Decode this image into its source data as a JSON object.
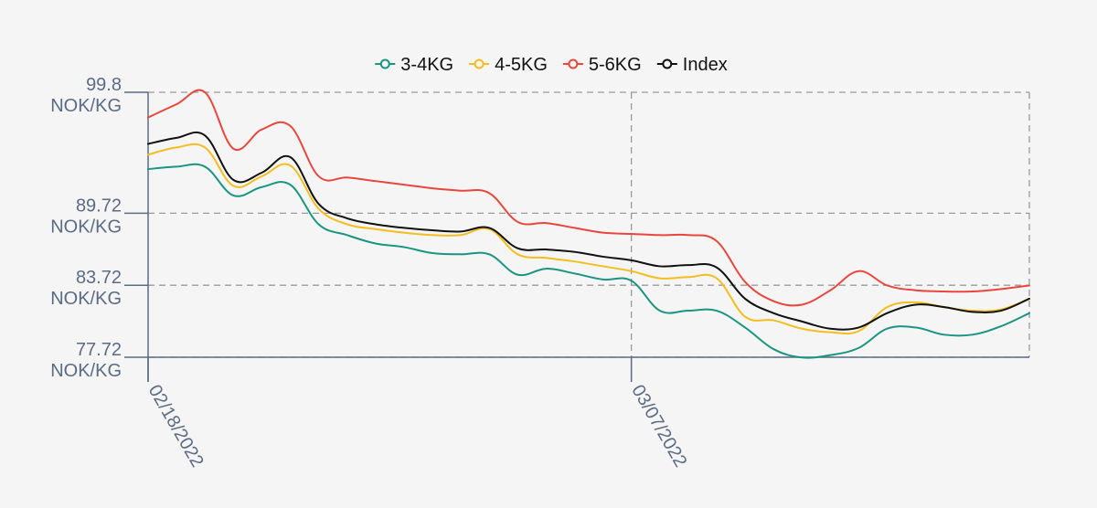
{
  "chart_data": {
    "type": "line",
    "x": [
      "2022-02-18",
      "2022-02-19",
      "2022-02-20",
      "2022-02-21",
      "2022-02-22",
      "2022-02-23",
      "2022-02-24",
      "2022-02-25",
      "2022-02-26",
      "2022-02-27",
      "2022-02-28",
      "2022-03-01",
      "2022-03-02",
      "2022-03-03",
      "2022-03-04",
      "2022-03-05",
      "2022-03-06",
      "2022-03-07",
      "2022-03-08",
      "2022-03-09",
      "2022-03-10",
      "2022-03-11",
      "2022-03-12",
      "2022-03-13",
      "2022-03-14",
      "2022-03-15",
      "2022-03-16",
      "2022-03-17",
      "2022-03-18",
      "2022-03-19",
      "2022-03-20",
      "2022-03-21"
    ],
    "series": [
      {
        "name": "3-4KG",
        "color": "#1a9580",
        "values": [
          93.4,
          93.6,
          93.6,
          91.2,
          91.9,
          92.1,
          88.8,
          87.9,
          87.2,
          86.9,
          86.4,
          86.3,
          86.3,
          84.6,
          85.1,
          84.7,
          84.2,
          84.1,
          81.6,
          81.6,
          81.6,
          80.2,
          78.4,
          77.7,
          77.9,
          78.5,
          80.1,
          80.2,
          79.6,
          79.6,
          80.3,
          81.4
        ]
      },
      {
        "name": "4-5KG",
        "color": "#f5bd1f",
        "values": [
          94.6,
          95.2,
          95.2,
          92.0,
          92.8,
          93.7,
          90.1,
          88.8,
          88.4,
          88.1,
          87.9,
          87.9,
          88.4,
          86.3,
          86.0,
          85.7,
          85.3,
          84.9,
          84.3,
          84.4,
          84.3,
          81.1,
          80.8,
          80.1,
          79.8,
          79.9,
          81.9,
          82.3,
          81.9,
          81.6,
          81.7,
          82.6
        ]
      },
      {
        "name": "5-6KG",
        "color": "#e8473d",
        "values": [
          97.7,
          98.8,
          99.8,
          95.1,
          96.7,
          97.0,
          92.8,
          92.7,
          92.4,
          92.1,
          91.8,
          91.6,
          91.4,
          89.0,
          88.9,
          88.5,
          88.1,
          88.0,
          87.9,
          87.9,
          87.4,
          84.0,
          82.4,
          82.1,
          83.3,
          84.9,
          83.7,
          83.3,
          83.2,
          83.2,
          83.4,
          83.7
        ]
      },
      {
        "name": "Index",
        "color": "#111111",
        "values": [
          95.5,
          96.0,
          96.2,
          92.5,
          93.1,
          94.4,
          90.5,
          89.3,
          88.8,
          88.5,
          88.3,
          88.2,
          88.5,
          86.8,
          86.7,
          86.5,
          86.1,
          85.8,
          85.3,
          85.4,
          85.2,
          82.6,
          81.4,
          80.7,
          80.1,
          80.2,
          81.4,
          82.1,
          81.9,
          81.5,
          81.6,
          82.6
        ]
      }
    ],
    "y_ticks": [
      {
        "value": 99.8,
        "line1": "99.8",
        "line2": "NOK/KG"
      },
      {
        "value": 89.72,
        "line1": "89.72",
        "line2": "NOK/KG"
      },
      {
        "value": 83.72,
        "line1": "83.72",
        "line2": "NOK/KG"
      },
      {
        "value": 77.72,
        "line1": "77.72",
        "line2": "NOK/KG"
      }
    ],
    "x_ticks": [
      {
        "index": 0,
        "label": "02/18/2022"
      },
      {
        "index": 17,
        "label": "03/07/2022"
      }
    ],
    "ylim": [
      77.72,
      99.8
    ],
    "xlabel": "",
    "ylabel": "",
    "title": "",
    "grid": true,
    "legend_position": "top-center",
    "axis_color": "#5b6b85",
    "grid_color": "#9a9a9a"
  }
}
